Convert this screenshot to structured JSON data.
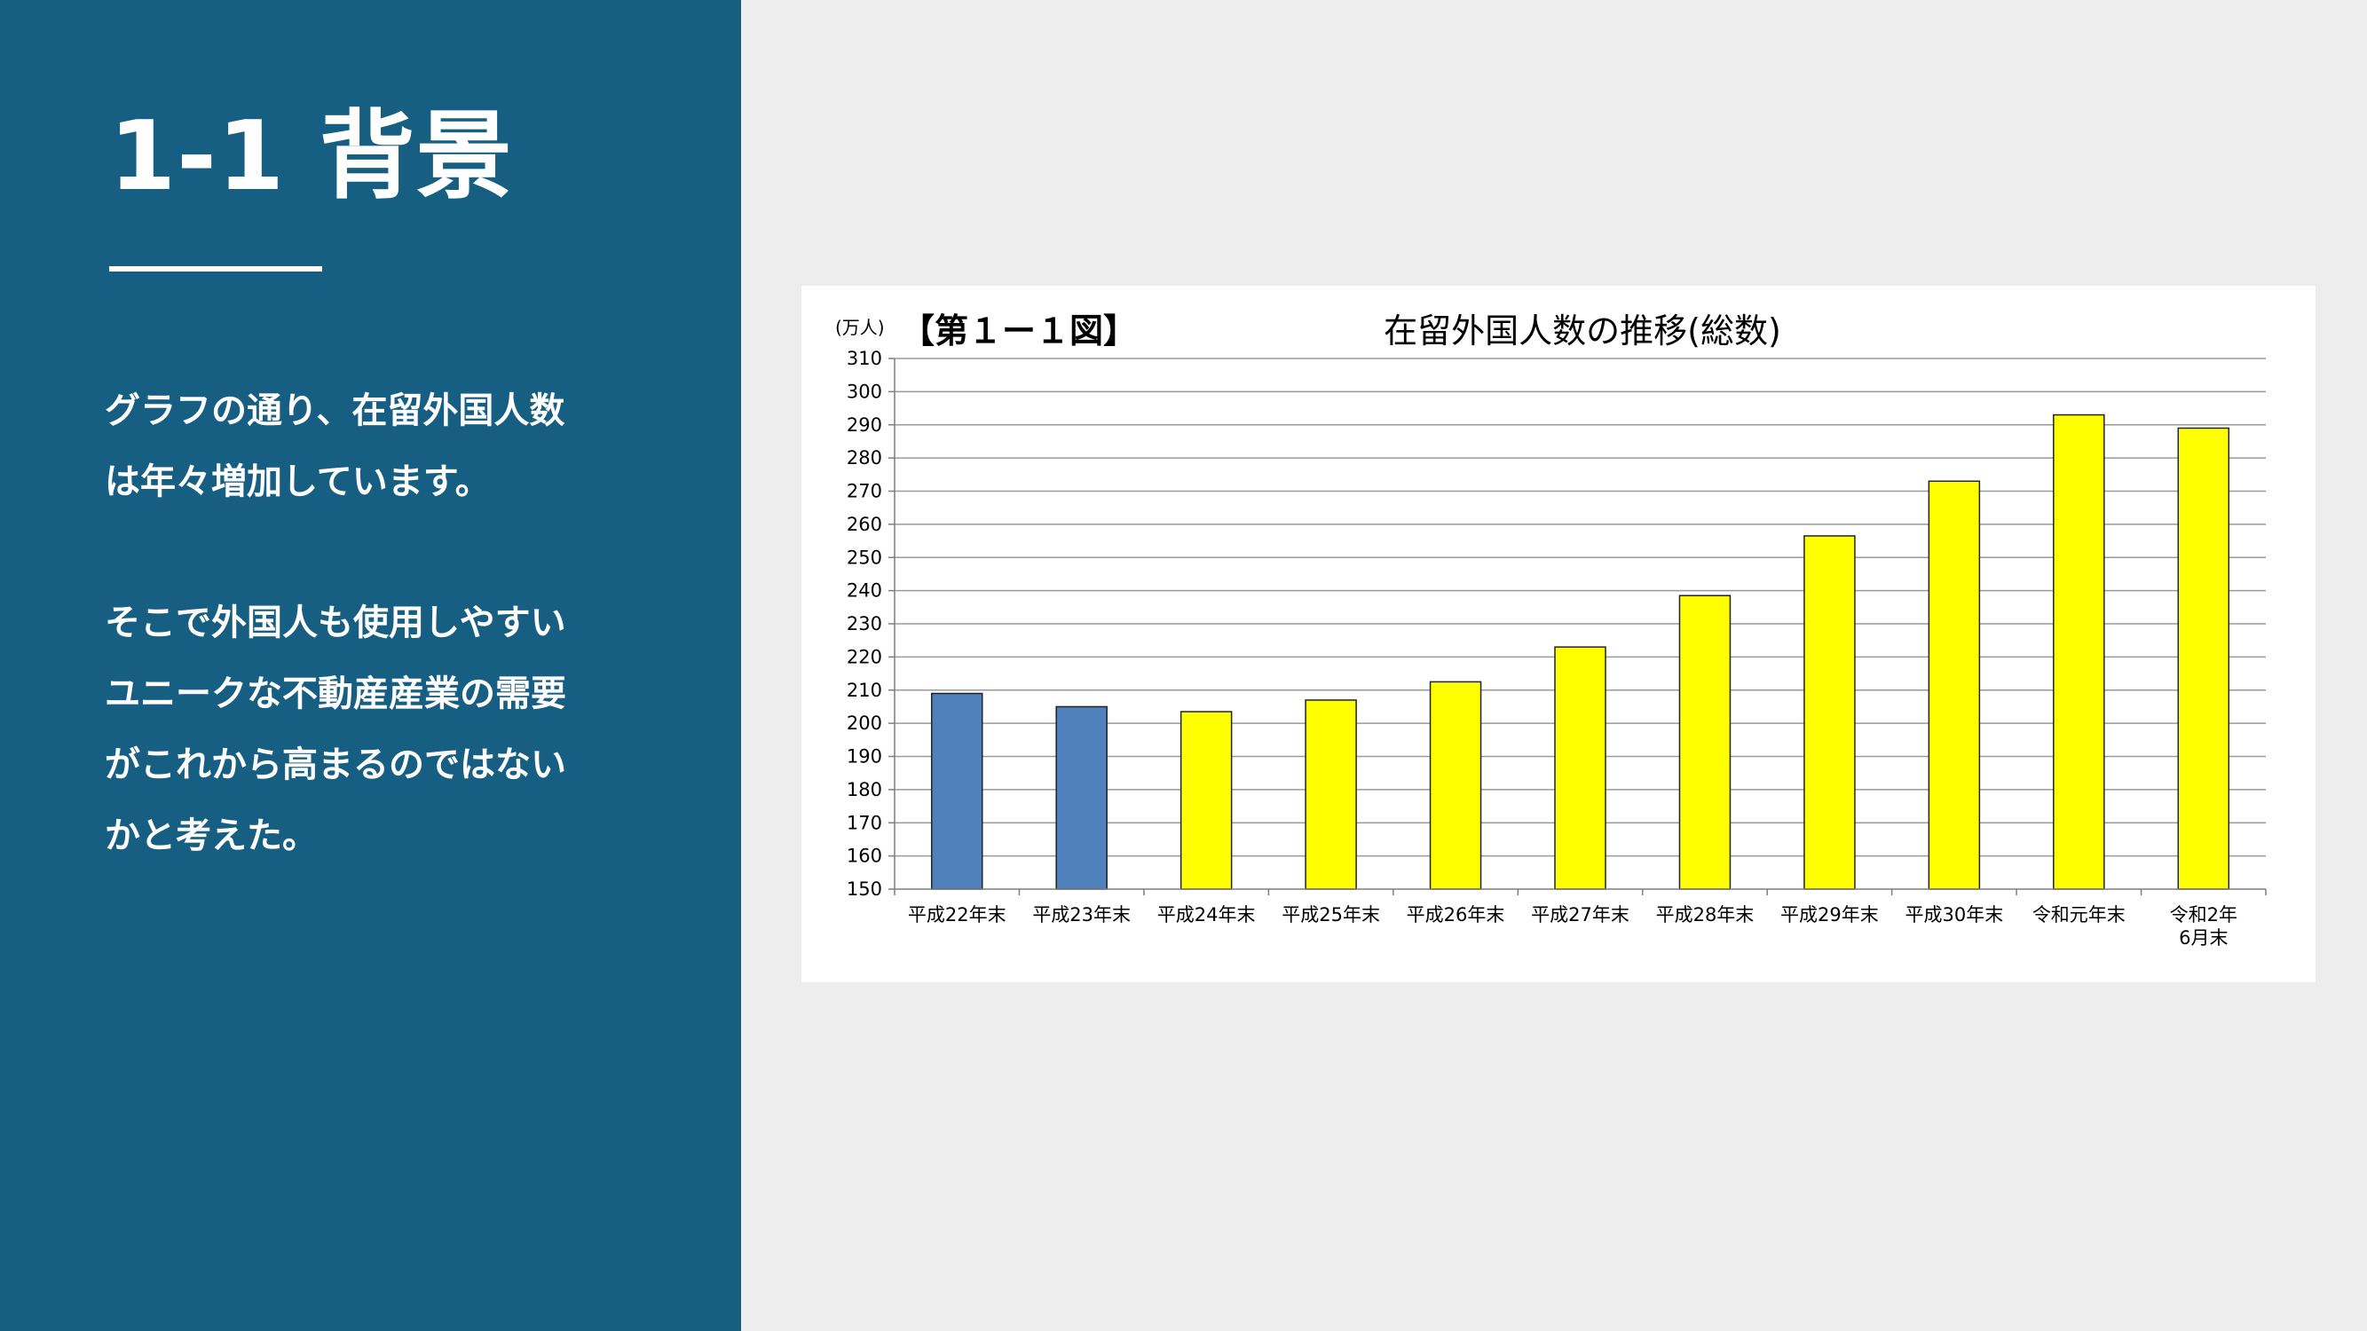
{
  "slide": {
    "title": "1-1 背景",
    "paragraph1_lines": [
      "グラフの通り、在留外国人数",
      "は年々増加しています。"
    ],
    "paragraph2_lines": [
      "そこで外国人も使用しやすい",
      "ユニークな不動産産業の需要",
      "がこれから高まるのではない",
      "かと考えた。"
    ]
  },
  "colors": {
    "panel": "#175f82",
    "background": "#ededed",
    "bar_blue": "#4f81bd",
    "bar_yellow": "#ffff00"
  },
  "chart_data": {
    "type": "bar",
    "unit_label": "(万人)",
    "figure_label": "【第１ー１図】",
    "title": "在留外国人数の推移(総数)",
    "categories": [
      "平成22年末",
      "平成23年末",
      "平成24年末",
      "平成25年末",
      "平成26年末",
      "平成27年末",
      "平成28年末",
      "平成29年末",
      "平成30年末",
      "令和元年末",
      "令和2年\n6月末"
    ],
    "values": [
      209,
      205,
      203.5,
      207,
      212.5,
      223,
      238.5,
      256.5,
      273,
      293,
      289
    ],
    "bar_colors": [
      "#4f81bd",
      "#4f81bd",
      "#ffff00",
      "#ffff00",
      "#ffff00",
      "#ffff00",
      "#ffff00",
      "#ffff00",
      "#ffff00",
      "#ffff00",
      "#ffff00"
    ],
    "ylim": [
      150,
      310
    ],
    "ytick_step": 10,
    "grid": true,
    "legend": false
  }
}
